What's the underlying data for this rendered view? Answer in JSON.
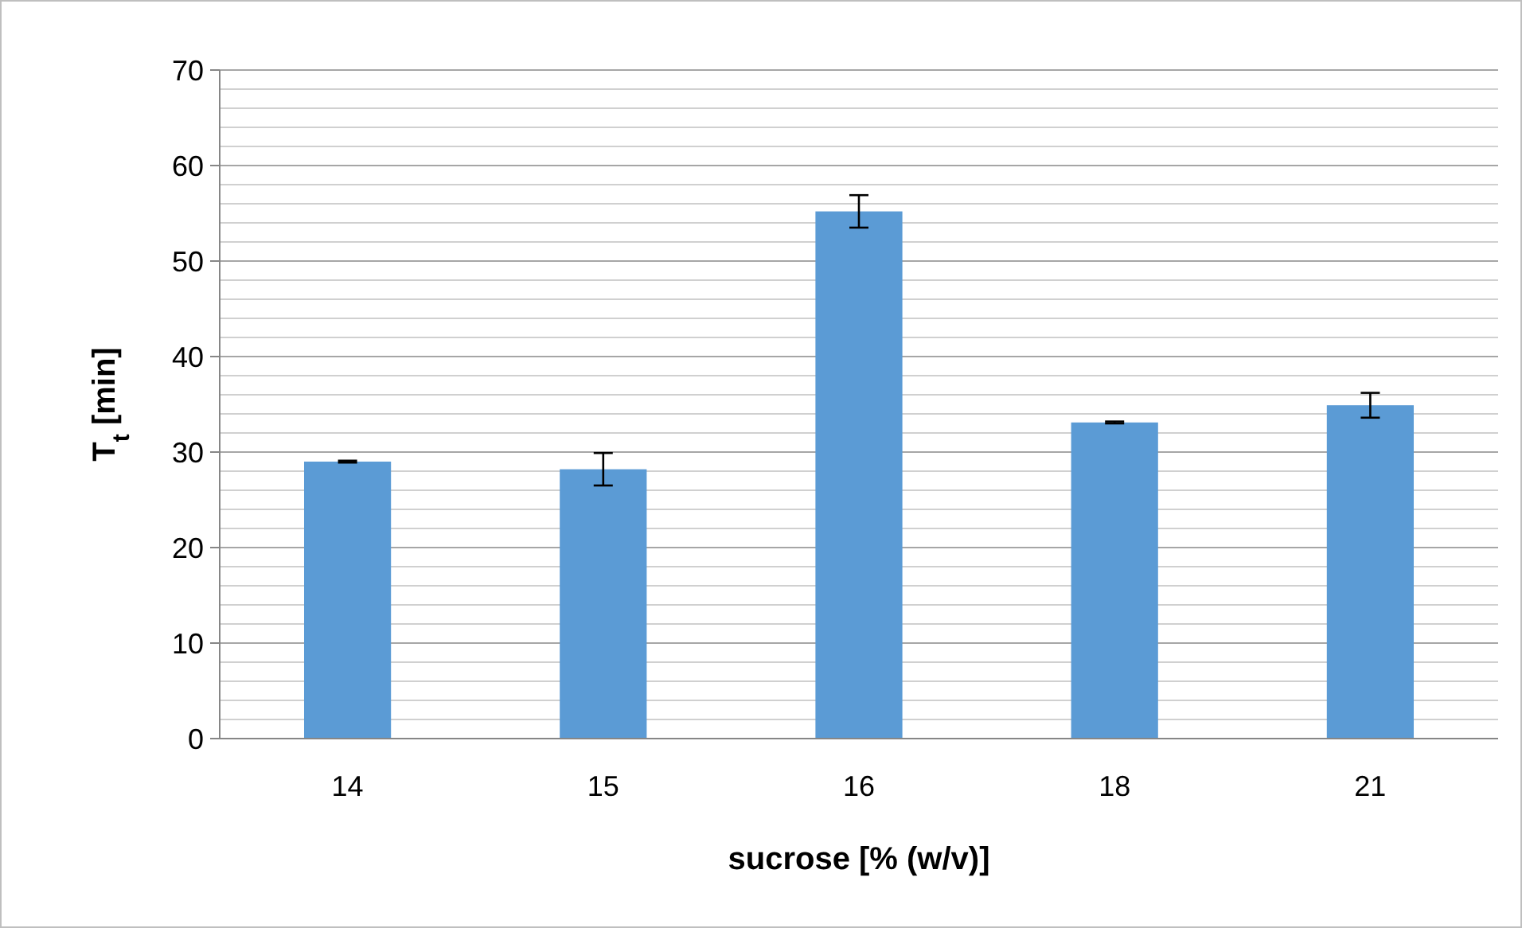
{
  "chart_data": {
    "type": "bar",
    "xlabel": "sucrose [% (w/v)]",
    "ylabel": "T$_{t}$ [min]",
    "categories": [
      "14",
      "15",
      "16",
      "18",
      "21"
    ],
    "values": [
      29.0,
      28.2,
      55.2,
      33.1,
      34.9
    ],
    "errors": [
      0.1,
      1.7,
      1.7,
      0.1,
      1.3
    ],
    "color": "#5b9bd5",
    "ylim": [
      0,
      70
    ],
    "yticks": [
      0,
      {
        "value": 2,
        "label": null
      },
      {
        "value": 4,
        "label": null
      },
      {
        "value": 6,
        "label": null
      },
      {
        "value": 8,
        "label": null
      },
      10,
      {
        "value": 12,
        "label": null
      },
      {
        "value": 14,
        "label": null
      },
      {
        "value": 16,
        "label": null
      },
      {
        "value": 18,
        "label": null
      },
      20,
      {
        "value": 22,
        "label": null
      },
      {
        "value": 24,
        "label": null
      },
      {
        "value": 26,
        "label": null
      },
      {
        "value": 28,
        "label": null
      },
      30,
      {
        "value": 32,
        "label": null
      },
      {
        "value": 34,
        "label": null
      },
      {
        "value": 36,
        "label": null
      },
      {
        "value": 38,
        "label": null
      },
      40,
      {
        "value": 42,
        "label": null
      },
      {
        "value": 44,
        "label": null
      },
      {
        "value": 46,
        "label": null
      },
      {
        "value": 48,
        "label": null
      },
      50,
      {
        "value": 52,
        "label": null
      },
      {
        "value": 54,
        "label": null
      },
      {
        "value": 56,
        "label": null
      },
      {
        "value": 58,
        "label": null
      },
      60,
      {
        "value": 62,
        "label": null
      },
      {
        "value": 64,
        "label": null
      },
      {
        "value": 66,
        "label": null
      },
      {
        "value": 68,
        "label": null
      },
      70
    ],
    "grid": true
  }
}
